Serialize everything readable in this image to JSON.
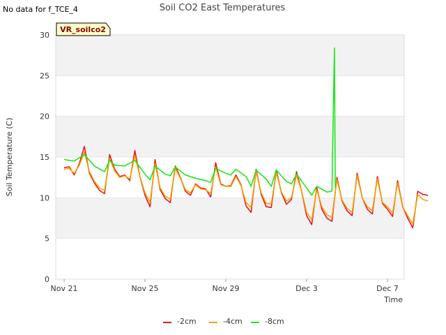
{
  "no_data_note": "No data for f_TCE_4",
  "badge": "VR_soilco2",
  "chart_data": {
    "type": "line",
    "title": "Soil CO2 East Temperatures",
    "xlabel": "Time",
    "ylabel": "Soil Temperature (C)",
    "x_start": "2024-11-21",
    "x_end": "2024-12-08",
    "ylim": [
      0,
      30
    ],
    "y_ticks": [
      0,
      5,
      10,
      15,
      20,
      25,
      30
    ],
    "x_ticks": [
      "Nov 21",
      "Nov 25",
      "Nov 29",
      "Dec 3",
      "Dec 7"
    ],
    "grid": true,
    "legend_position": "bottom",
    "series": [
      {
        "name": "-2cm",
        "color": "#e8171e",
        "points": [
          [
            "2024-11-21",
            13.7
          ],
          [
            "2024-11-21T06",
            13.8
          ],
          [
            "2024-11-21T12",
            12.8
          ],
          [
            "2024-11-21T18",
            14.2
          ],
          [
            "2024-11-22",
            16.3
          ],
          [
            "2024-11-22T06",
            13.0
          ],
          [
            "2024-11-22T12",
            11.8
          ],
          [
            "2024-11-22T18",
            10.9
          ],
          [
            "2024-11-23",
            10.5
          ],
          [
            "2024-11-23T06",
            15.3
          ],
          [
            "2024-11-23T12",
            13.5
          ],
          [
            "2024-11-23T18",
            12.6
          ],
          [
            "2024-11-24",
            12.8
          ],
          [
            "2024-11-24T06",
            12.1
          ],
          [
            "2024-11-24T12",
            15.8
          ],
          [
            "2024-11-24T18",
            12.6
          ],
          [
            "2024-11-25",
            10.3
          ],
          [
            "2024-11-25T06",
            8.9
          ],
          [
            "2024-11-25T12",
            14.7
          ],
          [
            "2024-11-25T18",
            11.0
          ],
          [
            "2024-11-26",
            9.9
          ],
          [
            "2024-11-26T06",
            9.4
          ],
          [
            "2024-11-26T12",
            13.9
          ],
          [
            "2024-11-26T18",
            12.5
          ],
          [
            "2024-11-27",
            10.8
          ],
          [
            "2024-11-27T06",
            10.3
          ],
          [
            "2024-11-27T12",
            11.7
          ],
          [
            "2024-11-27T18",
            11.2
          ],
          [
            "2024-11-28",
            11.1
          ],
          [
            "2024-11-28T06",
            10.1
          ],
          [
            "2024-11-28T12",
            14.3
          ],
          [
            "2024-11-28T18",
            11.7
          ],
          [
            "2024-11-29",
            11.4
          ],
          [
            "2024-11-29T06",
            11.5
          ],
          [
            "2024-11-29T12",
            12.8
          ],
          [
            "2024-11-29T18",
            11.6
          ],
          [
            "2024-11-30",
            9.0
          ],
          [
            "2024-11-30T06",
            8.2
          ],
          [
            "2024-11-30T12",
            13.5
          ],
          [
            "2024-11-30T18",
            10.4
          ],
          [
            "2024-12-01",
            8.9
          ],
          [
            "2024-12-01T06",
            8.8
          ],
          [
            "2024-12-01T12",
            13.4
          ],
          [
            "2024-12-01T18",
            10.6
          ],
          [
            "2024-12-02",
            9.2
          ],
          [
            "2024-12-02T06",
            9.8
          ],
          [
            "2024-12-02T12",
            13.2
          ],
          [
            "2024-12-02T18",
            10.8
          ],
          [
            "2024-12-03",
            7.8
          ],
          [
            "2024-12-03T06",
            6.7
          ],
          [
            "2024-12-03T12",
            11.3
          ],
          [
            "2024-12-03T18",
            8.6
          ],
          [
            "2024-12-04",
            7.5
          ],
          [
            "2024-12-04T06",
            7.1
          ],
          [
            "2024-12-04T12",
            12.5
          ],
          [
            "2024-12-04T18",
            9.6
          ],
          [
            "2024-12-05",
            8.4
          ],
          [
            "2024-12-05T06",
            7.8
          ],
          [
            "2024-12-05T12",
            13.0
          ],
          [
            "2024-12-05T18",
            10.0
          ],
          [
            "2024-12-06",
            8.6
          ],
          [
            "2024-12-06T06",
            8.0
          ],
          [
            "2024-12-06T12",
            12.6
          ],
          [
            "2024-12-06T18",
            9.3
          ],
          [
            "2024-12-07",
            8.6
          ],
          [
            "2024-12-07T06",
            7.7
          ],
          [
            "2024-12-07T12",
            12.1
          ],
          [
            "2024-12-07T18",
            8.9
          ],
          [
            "2024-12-08",
            7.5
          ],
          [
            "2024-12-08T06",
            6.3
          ],
          [
            "2024-12-08T12",
            10.8
          ],
          [
            "2024-12-08T18",
            10.4
          ],
          [
            "2024-12-09",
            10.3
          ]
        ]
      },
      {
        "name": "-4cm",
        "color": "#f5a000",
        "points": [
          [
            "2024-11-21",
            13.5
          ],
          [
            "2024-11-21T06",
            13.6
          ],
          [
            "2024-11-21T12",
            13.0
          ],
          [
            "2024-11-21T18",
            14.0
          ],
          [
            "2024-11-22",
            15.6
          ],
          [
            "2024-11-22T06",
            13.2
          ],
          [
            "2024-11-22T12",
            12.0
          ],
          [
            "2024-11-22T18",
            11.2
          ],
          [
            "2024-11-23",
            10.9
          ],
          [
            "2024-11-23T06",
            14.8
          ],
          [
            "2024-11-23T12",
            13.3
          ],
          [
            "2024-11-23T18",
            12.5
          ],
          [
            "2024-11-24",
            12.7
          ],
          [
            "2024-11-24T06",
            12.3
          ],
          [
            "2024-11-24T12",
            15.2
          ],
          [
            "2024-11-24T18",
            12.6
          ],
          [
            "2024-11-25",
            10.6
          ],
          [
            "2024-11-25T06",
            9.4
          ],
          [
            "2024-11-25T12",
            14.2
          ],
          [
            "2024-11-25T18",
            11.2
          ],
          [
            "2024-11-26",
            10.2
          ],
          [
            "2024-11-26T06",
            9.8
          ],
          [
            "2024-11-26T12",
            13.6
          ],
          [
            "2024-11-26T18",
            12.4
          ],
          [
            "2024-11-27",
            11.0
          ],
          [
            "2024-11-27T06",
            10.6
          ],
          [
            "2024-11-27T12",
            11.6
          ],
          [
            "2024-11-27T18",
            11.1
          ],
          [
            "2024-11-28",
            11.0
          ],
          [
            "2024-11-28T06",
            10.5
          ],
          [
            "2024-11-28T12",
            13.8
          ],
          [
            "2024-11-28T18",
            11.6
          ],
          [
            "2024-11-29",
            11.4
          ],
          [
            "2024-11-29T06",
            11.4
          ],
          [
            "2024-11-29T12",
            12.6
          ],
          [
            "2024-11-29T18",
            11.5
          ],
          [
            "2024-11-30",
            9.4
          ],
          [
            "2024-11-30T06",
            8.8
          ],
          [
            "2024-11-30T12",
            13.2
          ],
          [
            "2024-11-30T18",
            10.6
          ],
          [
            "2024-12-01",
            9.3
          ],
          [
            "2024-12-01T06",
            9.3
          ],
          [
            "2024-12-01T12",
            13.1
          ],
          [
            "2024-12-01T18",
            10.7
          ],
          [
            "2024-12-02",
            9.6
          ],
          [
            "2024-12-02T06",
            10.0
          ],
          [
            "2024-12-02T12",
            12.8
          ],
          [
            "2024-12-02T18",
            10.8
          ],
          [
            "2024-12-03",
            8.2
          ],
          [
            "2024-12-03T06",
            7.3
          ],
          [
            "2024-12-03T12",
            11.0
          ],
          [
            "2024-12-03T18",
            8.9
          ],
          [
            "2024-12-04",
            7.9
          ],
          [
            "2024-12-04T06",
            7.6
          ],
          [
            "2024-12-04T12",
            12.2
          ],
          [
            "2024-12-04T18",
            9.7
          ],
          [
            "2024-12-05",
            8.7
          ],
          [
            "2024-12-05T06",
            8.2
          ],
          [
            "2024-12-05T12",
            12.7
          ],
          [
            "2024-12-05T18",
            10.0
          ],
          [
            "2024-12-06",
            8.9
          ],
          [
            "2024-12-06T06",
            8.4
          ],
          [
            "2024-12-06T12",
            12.3
          ],
          [
            "2024-12-06T18",
            9.4
          ],
          [
            "2024-12-07",
            8.9
          ],
          [
            "2024-12-07T06",
            8.1
          ],
          [
            "2024-12-07T12",
            11.8
          ],
          [
            "2024-12-07T18",
            8.9
          ],
          [
            "2024-12-08",
            7.8
          ],
          [
            "2024-12-08T06",
            6.8
          ],
          [
            "2024-12-08T12",
            10.4
          ],
          [
            "2024-12-08T18",
            9.8
          ],
          [
            "2024-12-09",
            9.6
          ]
        ]
      },
      {
        "name": "-8cm",
        "color": "#1ee61e",
        "points": [
          [
            "2024-11-21",
            14.7
          ],
          [
            "2024-11-21T12",
            14.5
          ],
          [
            "2024-11-22",
            15.3
          ],
          [
            "2024-11-22T12",
            13.9
          ],
          [
            "2024-11-23",
            13.2
          ],
          [
            "2024-11-23T06",
            14.6
          ],
          [
            "2024-11-23T12",
            14.0
          ],
          [
            "2024-11-24",
            13.9
          ],
          [
            "2024-11-24T12",
            14.6
          ],
          [
            "2024-11-25",
            12.9
          ],
          [
            "2024-11-25T06",
            12.2
          ],
          [
            "2024-11-25T12",
            13.9
          ],
          [
            "2024-11-26",
            12.9
          ],
          [
            "2024-11-26T06",
            12.7
          ],
          [
            "2024-11-26T12",
            13.8
          ],
          [
            "2024-11-27",
            12.8
          ],
          [
            "2024-11-27T12",
            12.4
          ],
          [
            "2024-11-28",
            12.1
          ],
          [
            "2024-11-28T06",
            11.9
          ],
          [
            "2024-11-28T12",
            13.6
          ],
          [
            "2024-11-29",
            13.0
          ],
          [
            "2024-11-29T06",
            12.8
          ],
          [
            "2024-11-29T12",
            13.5
          ],
          [
            "2024-11-30",
            12.6
          ],
          [
            "2024-11-30T06",
            11.4
          ],
          [
            "2024-11-30T12",
            13.4
          ],
          [
            "2024-12-01",
            12.3
          ],
          [
            "2024-12-01T06",
            11.4
          ],
          [
            "2024-12-01T12",
            13.4
          ],
          [
            "2024-12-02",
            12.0
          ],
          [
            "2024-12-02T06",
            11.7
          ],
          [
            "2024-12-02T12",
            12.9
          ],
          [
            "2024-12-03",
            11.2
          ],
          [
            "2024-12-03T06",
            10.3
          ],
          [
            "2024-12-03T12",
            11.4
          ],
          [
            "2024-12-04",
            10.7
          ],
          [
            "2024-12-04T06",
            10.8
          ],
          [
            "2024-12-04T09",
            28.4
          ],
          [
            "2024-12-04T10",
            11.2
          ]
        ]
      }
    ]
  }
}
